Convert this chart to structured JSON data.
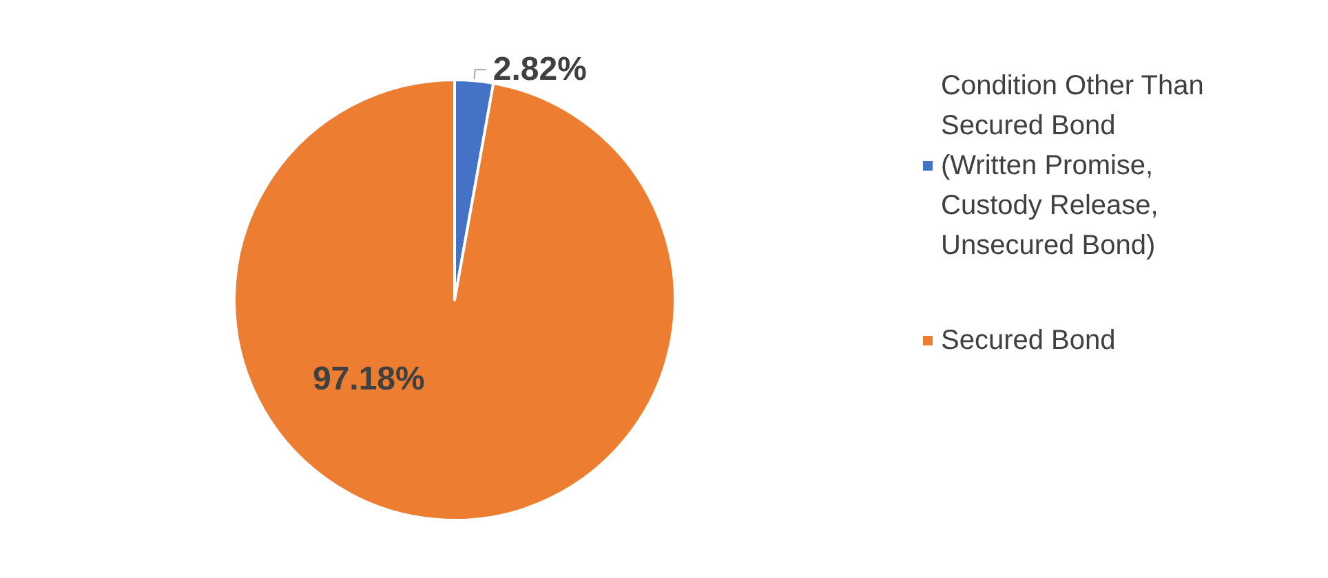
{
  "chart_data": {
    "type": "pie",
    "categories": [
      "Condition Other Than Secured Bond (Written Promise, Custody Release, Unsecured Bond)",
      "Secured Bond"
    ],
    "values": [
      2.82,
      97.18
    ],
    "colors": [
      "#4472c4",
      "#ed7d31"
    ],
    "value_labels": [
      "2.82%",
      "97.18%"
    ],
    "legend": "right"
  }
}
